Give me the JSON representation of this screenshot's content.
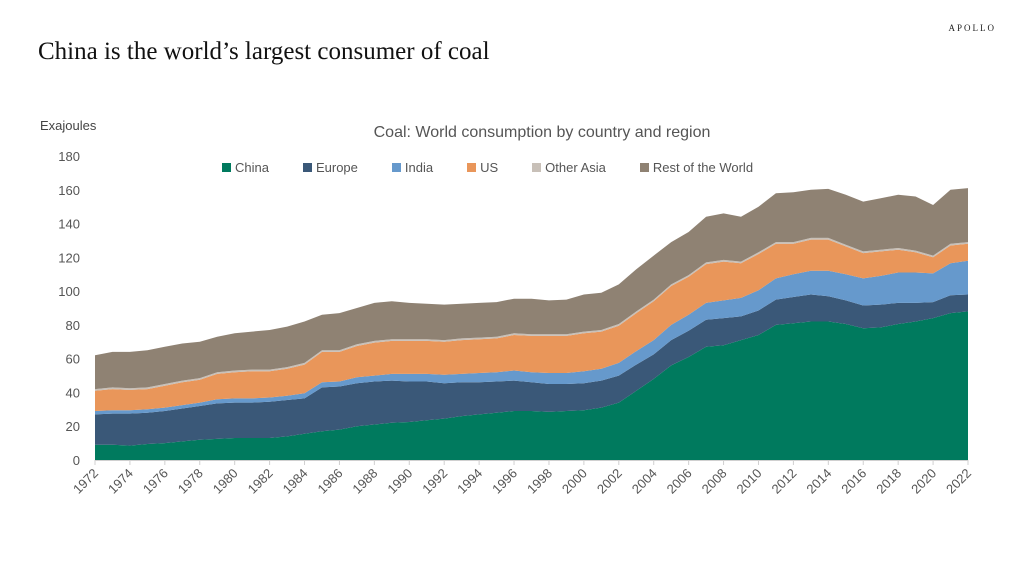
{
  "brand": "APOLLO",
  "headline": "China is the world’s largest consumer of coal",
  "chart_data": {
    "type": "area",
    "stacked": true,
    "title": "Coal: World consumption by country and region",
    "ylabel": "Exajoules",
    "xlabel": "",
    "ylim": [
      0,
      180
    ],
    "yticks": [
      0,
      20,
      40,
      60,
      80,
      100,
      120,
      140,
      160,
      180
    ],
    "xlim": [
      1972,
      2022
    ],
    "xticks": [
      1972,
      1974,
      1976,
      1978,
      1980,
      1982,
      1984,
      1986,
      1988,
      1990,
      1992,
      1994,
      1996,
      1998,
      2000,
      2002,
      2004,
      2006,
      2008,
      2010,
      2012,
      2014,
      2016,
      2018,
      2020,
      2022
    ],
    "legend_position": "top",
    "grid": false,
    "x": [
      1972,
      1973,
      1974,
      1975,
      1976,
      1977,
      1978,
      1979,
      1980,
      1981,
      1982,
      1983,
      1984,
      1985,
      1986,
      1987,
      1988,
      1989,
      1990,
      1991,
      1992,
      1993,
      1994,
      1995,
      1996,
      1997,
      1998,
      1999,
      2000,
      2001,
      2002,
      2003,
      2004,
      2005,
      2006,
      2007,
      2008,
      2009,
      2010,
      2011,
      2012,
      2013,
      2014,
      2015,
      2016,
      2017,
      2018,
      2019,
      2020,
      2021,
      2022
    ],
    "series": [
      {
        "name": "China",
        "color": "#007a5e",
        "values": [
          9,
          9,
          8.5,
          9.5,
          10,
          11,
          12,
          12.5,
          13,
          13,
          13,
          14,
          15.5,
          17,
          18,
          20,
          21,
          22,
          22.5,
          23.5,
          24.5,
          26,
          27,
          28,
          29,
          29,
          28.5,
          29,
          29.5,
          31,
          34,
          41,
          48,
          56,
          61,
          67,
          68,
          71,
          74,
          80,
          81,
          82,
          82,
          80.5,
          78,
          78.5,
          80.5,
          82,
          84,
          87,
          88
        ]
      },
      {
        "name": "Europe",
        "color": "#3a5878",
        "values": [
          18,
          18.5,
          19,
          18.5,
          19,
          19.5,
          20,
          21,
          21,
          21,
          21.5,
          21.5,
          21,
          26,
          25.5,
          25.5,
          25.5,
          25,
          24,
          23,
          21,
          20,
          19,
          18.5,
          18,
          17,
          16.5,
          16,
          16,
          16,
          16,
          15.5,
          14.5,
          15,
          15.5,
          16,
          16,
          14,
          14.5,
          15,
          15.5,
          16,
          15,
          14,
          13.5,
          13.5,
          12.5,
          11,
          9.5,
          10.5,
          10
        ]
      },
      {
        "name": "India",
        "color": "#6699cc",
        "values": [
          2,
          2,
          2,
          2,
          2,
          2,
          2,
          2.5,
          2.5,
          2.5,
          2.5,
          2.5,
          3,
          3,
          3,
          3.5,
          3.5,
          4,
          4.5,
          4.5,
          5,
          5,
          5.5,
          5.5,
          6,
          6,
          6.5,
          6.5,
          7,
          7,
          7.5,
          8,
          8.5,
          9,
          9.5,
          10,
          10.5,
          11,
          12,
          12.5,
          13.5,
          14,
          15,
          15.5,
          16,
          17,
          18,
          18,
          17,
          19,
          20
        ]
      },
      {
        "name": "US",
        "color": "#e9965a",
        "values": [
          12,
          12.5,
          12,
          12,
          13,
          13.5,
          13.5,
          15,
          15.5,
          16,
          15.5,
          16,
          17,
          18,
          17.5,
          18.5,
          19.5,
          19.5,
          19.5,
          19.5,
          19.5,
          20,
          20,
          20,
          21,
          21.5,
          22,
          22,
          22.5,
          22,
          22,
          22.5,
          23,
          23,
          22.5,
          23,
          23,
          20.5,
          21.5,
          20.5,
          18,
          18.5,
          18.5,
          16.5,
          15,
          14.5,
          13.5,
          12,
          9.5,
          10.5,
          10
        ]
      },
      {
        "name": "Other Asia",
        "color": "#c8c0b8",
        "values": [
          1,
          1,
          1,
          1,
          1,
          1,
          1,
          1,
          1,
          1,
          1,
          1,
          1,
          1,
          1,
          1,
          1,
          1,
          1,
          1,
          1,
          1,
          1,
          1,
          1,
          1,
          1,
          1,
          1,
          1,
          1,
          1,
          1,
          1,
          1,
          1,
          1,
          1,
          1,
          1,
          1,
          1,
          1,
          1,
          1,
          1,
          1,
          1,
          1,
          1,
          1
        ]
      },
      {
        "name": "Rest of the World",
        "color": "#8f8273",
        "values": [
          20,
          21,
          21.5,
          22,
          22,
          22,
          21.5,
          21,
          22,
          22.5,
          23.5,
          24,
          24.5,
          21,
          22,
          21.5,
          22.5,
          22.5,
          21.5,
          21,
          21,
          20.5,
          20.5,
          20.5,
          20.5,
          21,
          20,
          20.5,
          22,
          22,
          23.5,
          25,
          26,
          25,
          25.5,
          27,
          27.5,
          26.5,
          27,
          29,
          29.5,
          28.5,
          29,
          29.5,
          29.5,
          30.5,
          31.5,
          32,
          30,
          32,
          32
        ]
      }
    ]
  }
}
